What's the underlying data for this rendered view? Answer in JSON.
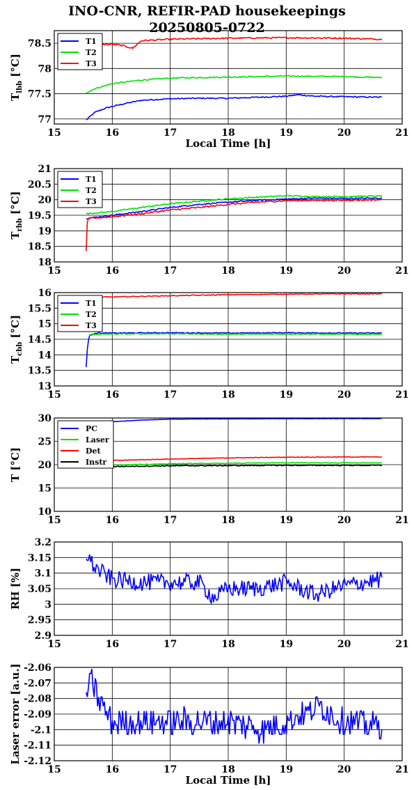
{
  "title": {
    "line1": "INO-CNR, REFIR-PAD housekeepings",
    "line2": "20250805-0722"
  },
  "colors": {
    "blue": "#0000ff",
    "green": "#00e000",
    "red": "#ff0000",
    "black": "#000000"
  },
  "chart_data": [
    {
      "type": "line",
      "ylabel": "T_lbb [°C]",
      "ylabel_main": "T",
      "ylabel_sub": "lbb",
      "ylabel_unit": " [°C]",
      "xlabel": "Local Time [h]",
      "xlim": [
        15,
        21
      ],
      "xticks": [
        "15",
        "16",
        "17",
        "18",
        "19",
        "20",
        "21"
      ],
      "ylim": [
        76.9,
        78.75
      ],
      "yticks": [
        {
          "v": 77,
          "label": "77"
        },
        {
          "v": 77.5,
          "label": "77.5"
        },
        {
          "v": 78,
          "label": "78"
        },
        {
          "v": 78.5,
          "label": "78.5"
        }
      ],
      "grid": true,
      "legend_position": "top-left",
      "series": [
        {
          "name": "T1",
          "color": "#0000ff",
          "noise": 0.012,
          "points": [
            [
              15.55,
              76.98
            ],
            [
              15.7,
              77.13
            ],
            [
              15.9,
              77.22
            ],
            [
              16.2,
              77.3
            ],
            [
              16.5,
              77.37
            ],
            [
              17.0,
              77.4
            ],
            [
              17.5,
              77.41
            ],
            [
              18.0,
              77.41
            ],
            [
              18.5,
              77.43
            ],
            [
              19.0,
              77.45
            ],
            [
              19.2,
              77.48
            ],
            [
              19.5,
              77.45
            ],
            [
              20.0,
              77.44
            ],
            [
              20.65,
              77.43
            ]
          ]
        },
        {
          "name": "T2",
          "color": "#00e000",
          "noise": 0.012,
          "points": [
            [
              15.55,
              77.52
            ],
            [
              15.7,
              77.6
            ],
            [
              16.0,
              77.7
            ],
            [
              16.5,
              77.77
            ],
            [
              17.0,
              77.81
            ],
            [
              18.0,
              77.83
            ],
            [
              19.0,
              77.85
            ],
            [
              20.0,
              77.84
            ],
            [
              20.65,
              77.82
            ]
          ]
        },
        {
          "name": "T3",
          "color": "#ff0000",
          "noise": 0.014,
          "points": [
            [
              15.55,
              78.45
            ],
            [
              15.7,
              78.47
            ],
            [
              16.0,
              78.48
            ],
            [
              16.2,
              78.45
            ],
            [
              16.35,
              78.4
            ],
            [
              16.5,
              78.55
            ],
            [
              17.0,
              78.58
            ],
            [
              18.0,
              78.6
            ],
            [
              19.0,
              78.61
            ],
            [
              20.0,
              78.6
            ],
            [
              20.65,
              78.58
            ]
          ]
        }
      ]
    },
    {
      "type": "line",
      "ylabel": "T_rbb [°C]",
      "ylabel_main": "T",
      "ylabel_sub": "rbb",
      "ylabel_unit": " [°C]",
      "xlabel": "",
      "xlim": [
        15,
        21
      ],
      "xticks": [
        "15",
        "16",
        "17",
        "18",
        "19",
        "20",
        "21"
      ],
      "ylim": [
        18,
        21
      ],
      "yticks": [
        {
          "v": 18,
          "label": "18"
        },
        {
          "v": 18.5,
          "label": "18.5"
        },
        {
          "v": 19,
          "label": "19"
        },
        {
          "v": 19.5,
          "label": "19.5"
        },
        {
          "v": 20,
          "label": "20"
        },
        {
          "v": 20.5,
          "label": "20.5"
        },
        {
          "v": 21,
          "label": "21"
        }
      ],
      "grid": true,
      "legend_position": "top-left",
      "series": [
        {
          "name": "T1",
          "color": "#0000ff",
          "noise": 0.02,
          "points": [
            [
              15.55,
              19.4
            ],
            [
              16.0,
              19.5
            ],
            [
              16.5,
              19.62
            ],
            [
              17.0,
              19.75
            ],
            [
              17.5,
              19.85
            ],
            [
              18.0,
              19.92
            ],
            [
              18.5,
              19.98
            ],
            [
              19.0,
              20.02
            ],
            [
              19.5,
              20.05
            ],
            [
              20.0,
              20.04
            ],
            [
              20.65,
              20.05
            ]
          ]
        },
        {
          "name": "T2",
          "color": "#00e000",
          "noise": 0.02,
          "points": [
            [
              15.55,
              19.55
            ],
            [
              16.0,
              19.62
            ],
            [
              16.5,
              19.75
            ],
            [
              17.0,
              19.87
            ],
            [
              17.5,
              19.95
            ],
            [
              18.0,
              20.03
            ],
            [
              18.5,
              20.08
            ],
            [
              19.0,
              20.13
            ],
            [
              19.5,
              20.1
            ],
            [
              20.0,
              20.1
            ],
            [
              20.65,
              20.12
            ]
          ]
        },
        {
          "name": "T3",
          "color": "#ff0000",
          "noise": 0.025,
          "points": [
            [
              15.55,
              18.35
            ],
            [
              15.57,
              19.3
            ],
            [
              15.6,
              19.4
            ],
            [
              16.0,
              19.45
            ],
            [
              16.5,
              19.55
            ],
            [
              17.0,
              19.67
            ],
            [
              17.5,
              19.75
            ],
            [
              18.0,
              19.85
            ],
            [
              18.5,
              19.92
            ],
            [
              19.0,
              19.97
            ],
            [
              19.5,
              19.98
            ],
            [
              20.0,
              19.98
            ],
            [
              20.65,
              20.0
            ]
          ]
        }
      ]
    },
    {
      "type": "line",
      "ylabel": "T_cbb [°C]",
      "ylabel_main": "T",
      "ylabel_sub": "cbb",
      "ylabel_unit": " [°C]",
      "xlabel": "",
      "xlim": [
        15,
        21
      ],
      "xticks": [
        "15",
        "16",
        "17",
        "18",
        "19",
        "20",
        "21"
      ],
      "ylim": [
        13,
        16
      ],
      "yticks": [
        {
          "v": 13,
          "label": "13"
        },
        {
          "v": 13.5,
          "label": "13.5"
        },
        {
          "v": 14,
          "label": "14"
        },
        {
          "v": 14.5,
          "label": "14.5"
        },
        {
          "v": 15,
          "label": "15"
        },
        {
          "v": 15.5,
          "label": "15.5"
        },
        {
          "v": 16,
          "label": "16"
        }
      ],
      "grid": true,
      "legend_position": "top-left",
      "series": [
        {
          "name": "T1",
          "color": "#0000ff",
          "noise": 0.015,
          "points": [
            [
              15.55,
              13.6
            ],
            [
              15.57,
              14.2
            ],
            [
              15.6,
              14.6
            ],
            [
              15.7,
              14.7
            ],
            [
              16.0,
              14.7
            ],
            [
              17.0,
              14.71
            ],
            [
              18.0,
              14.7
            ],
            [
              19.0,
              14.71
            ],
            [
              20.0,
              14.7
            ],
            [
              20.65,
              14.7
            ]
          ]
        },
        {
          "name": "T2",
          "color": "#00e000",
          "noise": 0.015,
          "points": [
            [
              15.6,
              14.65
            ],
            [
              16.0,
              14.67
            ],
            [
              17.0,
              14.68
            ],
            [
              18.0,
              14.66
            ],
            [
              19.0,
              14.67
            ],
            [
              20.0,
              14.66
            ],
            [
              20.65,
              14.66
            ]
          ]
        },
        {
          "name": "T3",
          "color": "#ff0000",
          "noise": 0.012,
          "points": [
            [
              15.55,
              15.85
            ],
            [
              16.0,
              15.86
            ],
            [
              16.5,
              15.88
            ],
            [
              17.0,
              15.9
            ],
            [
              18.0,
              15.93
            ],
            [
              19.0,
              15.95
            ],
            [
              20.0,
              15.96
            ],
            [
              20.65,
              15.96
            ]
          ]
        }
      ]
    },
    {
      "type": "line",
      "ylabel": "T [°C]",
      "ylabel_main": "T [°C]",
      "ylabel_sub": "",
      "ylabel_unit": "",
      "xlabel": "",
      "xlim": [
        15,
        21
      ],
      "xticks": [
        "15",
        "16",
        "17",
        "18",
        "19",
        "20",
        "21"
      ],
      "ylim": [
        10,
        30
      ],
      "yticks": [
        {
          "v": 10,
          "label": "10"
        },
        {
          "v": 15,
          "label": "15"
        },
        {
          "v": 20,
          "label": "20"
        },
        {
          "v": 25,
          "label": "25"
        },
        {
          "v": 30,
          "label": "30"
        }
      ],
      "grid": true,
      "legend_position": "top-left",
      "series": [
        {
          "name": "PC",
          "color": "#0000ff",
          "noise": 0.03,
          "points": [
            [
              15.55,
              28.6
            ],
            [
              16.0,
              29.2
            ],
            [
              16.5,
              29.55
            ],
            [
              17.0,
              29.75
            ],
            [
              18.0,
              29.82
            ],
            [
              19.0,
              29.85
            ],
            [
              20.0,
              29.86
            ],
            [
              20.65,
              29.87
            ]
          ]
        },
        {
          "name": "Laser",
          "color": "#00e000",
          "noise": 0.08,
          "points": [
            [
              15.55,
              19.6
            ],
            [
              16.0,
              19.9
            ],
            [
              17.0,
              20.2
            ],
            [
              18.0,
              20.3
            ],
            [
              19.0,
              20.4
            ],
            [
              20.0,
              20.4
            ],
            [
              20.65,
              20.4
            ]
          ]
        },
        {
          "name": "Det",
          "color": "#ff0000",
          "noise": 0.06,
          "points": [
            [
              15.55,
              20.5
            ],
            [
              16.0,
              20.9
            ],
            [
              17.0,
              21.2
            ],
            [
              18.0,
              21.45
            ],
            [
              19.0,
              21.6
            ],
            [
              20.0,
              21.65
            ],
            [
              20.65,
              21.65
            ]
          ]
        },
        {
          "name": "Instr",
          "color": "#000000",
          "noise": 0.1,
          "points": [
            [
              15.55,
              19.5
            ],
            [
              16.0,
              19.6
            ],
            [
              17.0,
              19.75
            ],
            [
              18.0,
              19.8
            ],
            [
              19.0,
              19.85
            ],
            [
              20.0,
              19.85
            ],
            [
              20.65,
              19.85
            ]
          ]
        }
      ]
    },
    {
      "type": "line",
      "ylabel": "RH [%]",
      "ylabel_main": "RH [%]",
      "ylabel_sub": "",
      "ylabel_unit": "",
      "xlabel": "",
      "xlim": [
        15,
        21
      ],
      "xticks": [
        "15",
        "16",
        "17",
        "18",
        "19",
        "20",
        "21"
      ],
      "ylim": [
        2.9,
        3.2
      ],
      "yticks": [
        {
          "v": 2.9,
          "label": "2.9"
        },
        {
          "v": 2.95,
          "label": "2.95"
        },
        {
          "v": 3,
          "label": "3"
        },
        {
          "v": 3.05,
          "label": "3.05"
        },
        {
          "v": 3.1,
          "label": "3.1"
        },
        {
          "v": 3.15,
          "label": "3.15"
        },
        {
          "v": 3.2,
          "label": "3.2"
        }
      ],
      "grid": true,
      "legend_position": "none",
      "series": [
        {
          "name": "",
          "color": "#0000ff",
          "noise": 0.028,
          "points": [
            [
              15.55,
              3.165
            ],
            [
              15.65,
              3.13
            ],
            [
              15.75,
              3.11
            ],
            [
              16.0,
              3.08
            ],
            [
              16.5,
              3.07
            ],
            [
              17.0,
              3.07
            ],
            [
              17.5,
              3.07
            ],
            [
              17.75,
              3.02
            ],
            [
              18.0,
              3.05
            ],
            [
              18.5,
              3.05
            ],
            [
              19.0,
              3.07
            ],
            [
              19.5,
              3.03
            ],
            [
              20.0,
              3.06
            ],
            [
              20.65,
              3.08
            ]
          ]
        }
      ]
    },
    {
      "type": "line",
      "ylabel": "Laser error [a.u.]",
      "ylabel_main": "Laser error [a.u.]",
      "ylabel_sub": "",
      "ylabel_unit": "",
      "xlabel": "Local Time [h]",
      "xlim": [
        15,
        21
      ],
      "xticks": [
        "15",
        "16",
        "17",
        "18",
        "19",
        "20",
        "21"
      ],
      "ylim": [
        -2.12,
        -2.06
      ],
      "yticks": [
        {
          "v": -2.12,
          "label": "-2.12"
        },
        {
          "v": -2.11,
          "label": "-2.11"
        },
        {
          "v": -2.1,
          "label": "-2.1"
        },
        {
          "v": -2.09,
          "label": "-2.09"
        },
        {
          "v": -2.08,
          "label": "-2.08"
        },
        {
          "v": -2.07,
          "label": "-2.07"
        },
        {
          "v": -2.06,
          "label": "-2.06"
        }
      ],
      "grid": true,
      "legend_position": "none",
      "series": [
        {
          "name": "",
          "color": "#0000ff",
          "noise": 0.009,
          "quantum": 0.003,
          "points": [
            [
              15.55,
              -2.075
            ],
            [
              15.65,
              -2.07
            ],
            [
              15.75,
              -2.08
            ],
            [
              16.0,
              -2.095
            ],
            [
              17.0,
              -2.095
            ],
            [
              18.0,
              -2.095
            ],
            [
              18.6,
              -2.1
            ],
            [
              19.0,
              -2.095
            ],
            [
              19.6,
              -2.085
            ],
            [
              20.0,
              -2.095
            ],
            [
              20.65,
              -2.098
            ]
          ]
        }
      ]
    }
  ]
}
